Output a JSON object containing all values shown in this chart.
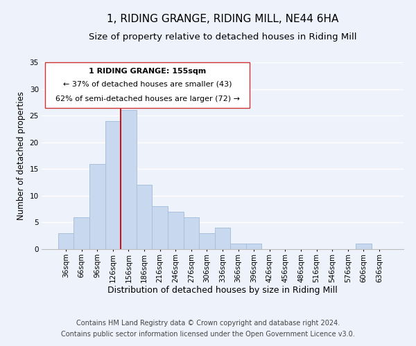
{
  "title": "1, RIDING GRANGE, RIDING MILL, NE44 6HA",
  "subtitle": "Size of property relative to detached houses in Riding Mill",
  "xlabel": "Distribution of detached houses by size in Riding Mill",
  "ylabel": "Number of detached properties",
  "bar_color": "#c8d8ee",
  "bar_edge_color": "#a8c0dc",
  "background_color": "#eef2fa",
  "grid_color": "#ffffff",
  "categories": [
    "36sqm",
    "66sqm",
    "96sqm",
    "126sqm",
    "156sqm",
    "186sqm",
    "216sqm",
    "246sqm",
    "276sqm",
    "306sqm",
    "336sqm",
    "366sqm",
    "396sqm",
    "426sqm",
    "456sqm",
    "486sqm",
    "516sqm",
    "546sqm",
    "576sqm",
    "606sqm",
    "636sqm"
  ],
  "values": [
    3,
    6,
    16,
    24,
    26,
    12,
    8,
    7,
    6,
    3,
    4,
    1,
    1,
    0,
    0,
    0,
    0,
    0,
    0,
    1,
    0
  ],
  "ylim": [
    0,
    35
  ],
  "yticks": [
    0,
    5,
    10,
    15,
    20,
    25,
    30,
    35
  ],
  "marker_bin_index": 4,
  "marker_label": "1 RIDING GRANGE: 155sqm",
  "annotation_line1": "← 37% of detached houses are smaller (43)",
  "annotation_line2": "62% of semi-detached houses are larger (72) →",
  "marker_color": "#cc0000",
  "footer_line1": "Contains HM Land Registry data © Crown copyright and database right 2024.",
  "footer_line2": "Contains public sector information licensed under the Open Government Licence v3.0.",
  "title_fontsize": 11,
  "subtitle_fontsize": 9.5,
  "xlabel_fontsize": 9,
  "ylabel_fontsize": 8.5,
  "tick_fontsize": 7.5,
  "annotation_fontsize": 8,
  "footer_fontsize": 7
}
